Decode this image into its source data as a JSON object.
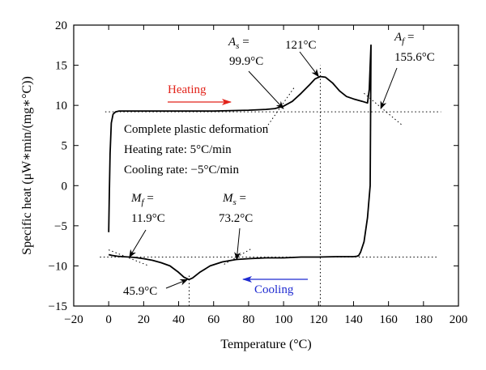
{
  "chart_data": {
    "type": "line",
    "title": "",
    "xlabel": "Temperature (°C)",
    "ylabel": "Specific heat (μW∗min/(mg∗°C))",
    "xlim": [
      -20,
      200
    ],
    "ylim": [
      -15,
      20
    ],
    "x_ticks": [
      "−20",
      "0",
      "20",
      "40",
      "60",
      "80",
      "100",
      "120",
      "140",
      "160",
      "180",
      "200"
    ],
    "x_tick_values": [
      -20,
      0,
      20,
      40,
      60,
      80,
      100,
      120,
      140,
      160,
      180,
      200
    ],
    "y_ticks": [
      "−15",
      "−10",
      "−5",
      "0",
      "5",
      "10",
      "15",
      "20"
    ],
    "y_tick_values": [
      -15,
      -10,
      -5,
      0,
      5,
      10,
      15,
      20
    ],
    "grid": false,
    "series": [
      {
        "color": "#000000",
        "x": [
          0,
          0.3,
          0.8,
          1.5,
          2.5,
          4,
          6,
          10,
          20,
          40,
          60,
          80,
          90,
          95,
          100,
          105,
          110,
          115,
          118,
          121,
          124,
          128,
          132,
          136,
          140,
          145,
          148,
          149,
          149.5,
          150,
          150,
          149.8,
          149.5,
          148,
          146,
          144,
          143,
          142,
          140,
          130,
          120,
          110,
          100,
          90,
          80,
          73,
          65,
          58,
          52,
          48,
          45.9,
          43,
          40,
          35,
          30,
          25,
          20,
          15,
          11.9,
          8,
          5,
          2,
          0
        ],
        "y": [
          -5.8,
          -2,
          4,
          7.8,
          8.9,
          9.2,
          9.3,
          9.3,
          9.3,
          9.3,
          9.3,
          9.4,
          9.5,
          9.6,
          9.9,
          10.5,
          11.5,
          12.6,
          13.3,
          13.6,
          13.5,
          12.8,
          11.8,
          11.1,
          10.8,
          10.5,
          10.3,
          12,
          15,
          17.5,
          17.3,
          10,
          0,
          -4,
          -7,
          -8.3,
          -8.7,
          -8.8,
          -8.85,
          -8.85,
          -8.9,
          -8.9,
          -9.0,
          -9.0,
          -9.1,
          -9.2,
          -9.5,
          -10.0,
          -10.8,
          -11.5,
          -11.7,
          -11.4,
          -10.8,
          -10.0,
          -9.6,
          -9.3,
          -9.1,
          -8.95,
          -8.9,
          -8.85,
          -8.8,
          -8.7,
          -8.6
        ]
      }
    ],
    "dotted_lines": [
      {
        "x": [
          -2,
          190
        ],
        "y": [
          9.2,
          9.2
        ]
      },
      {
        "x": [
          -5,
          188
        ],
        "y": [
          -8.9,
          -8.9
        ]
      },
      {
        "x": [
          121,
          121
        ],
        "y": [
          -15,
          15
        ]
      },
      {
        "x": [
          46,
          46
        ],
        "y": [
          -15,
          -11
        ]
      },
      {
        "x": [
          90,
          106
        ],
        "y": [
          7.2,
          12.2
        ]
      },
      {
        "x": [
          146,
          168
        ],
        "y": [
          11.5,
          7.5
        ]
      },
      {
        "x": [
          0,
          23
        ],
        "y": [
          -8.0,
          -10.0
        ]
      },
      {
        "x": [
          66,
          82
        ],
        "y": [
          -9.8,
          -7.8
        ]
      }
    ],
    "annotations": [
      {
        "lines": [
          "A_s =",
          "99.9°C"
        ],
        "color": "#000000",
        "point": [
          99.9,
          9.6
        ]
      },
      {
        "lines": [
          "121°C"
        ],
        "color": "#000000",
        "point": [
          120,
          13.6
        ]
      },
      {
        "lines": [
          "A_f =",
          "155.6°C"
        ],
        "color": "#000000",
        "point": [
          155.6,
          9.6
        ]
      },
      {
        "lines": [
          "M_f =",
          "11.9°C"
        ],
        "color": "#000000",
        "point": [
          11.9,
          -8.9
        ]
      },
      {
        "lines": [
          "M_s =",
          "73.2°C"
        ],
        "color": "#000000",
        "point": [
          73.2,
          -9.2
        ]
      },
      {
        "lines": [
          "45.9°C"
        ],
        "color": "#000000",
        "point": [
          45,
          -11.7
        ]
      },
      {
        "lines": [
          "Heating"
        ],
        "color": "#e2231a",
        "arrow_direction": "right"
      },
      {
        "lines": [
          "Cooling"
        ],
        "color": "#1f2bd1",
        "arrow_direction": "left"
      }
    ],
    "text_block": [
      "Complete plastic deformation",
      "Heating rate: 5°C/min",
      "Cooling rate: −5°C/min"
    ]
  }
}
